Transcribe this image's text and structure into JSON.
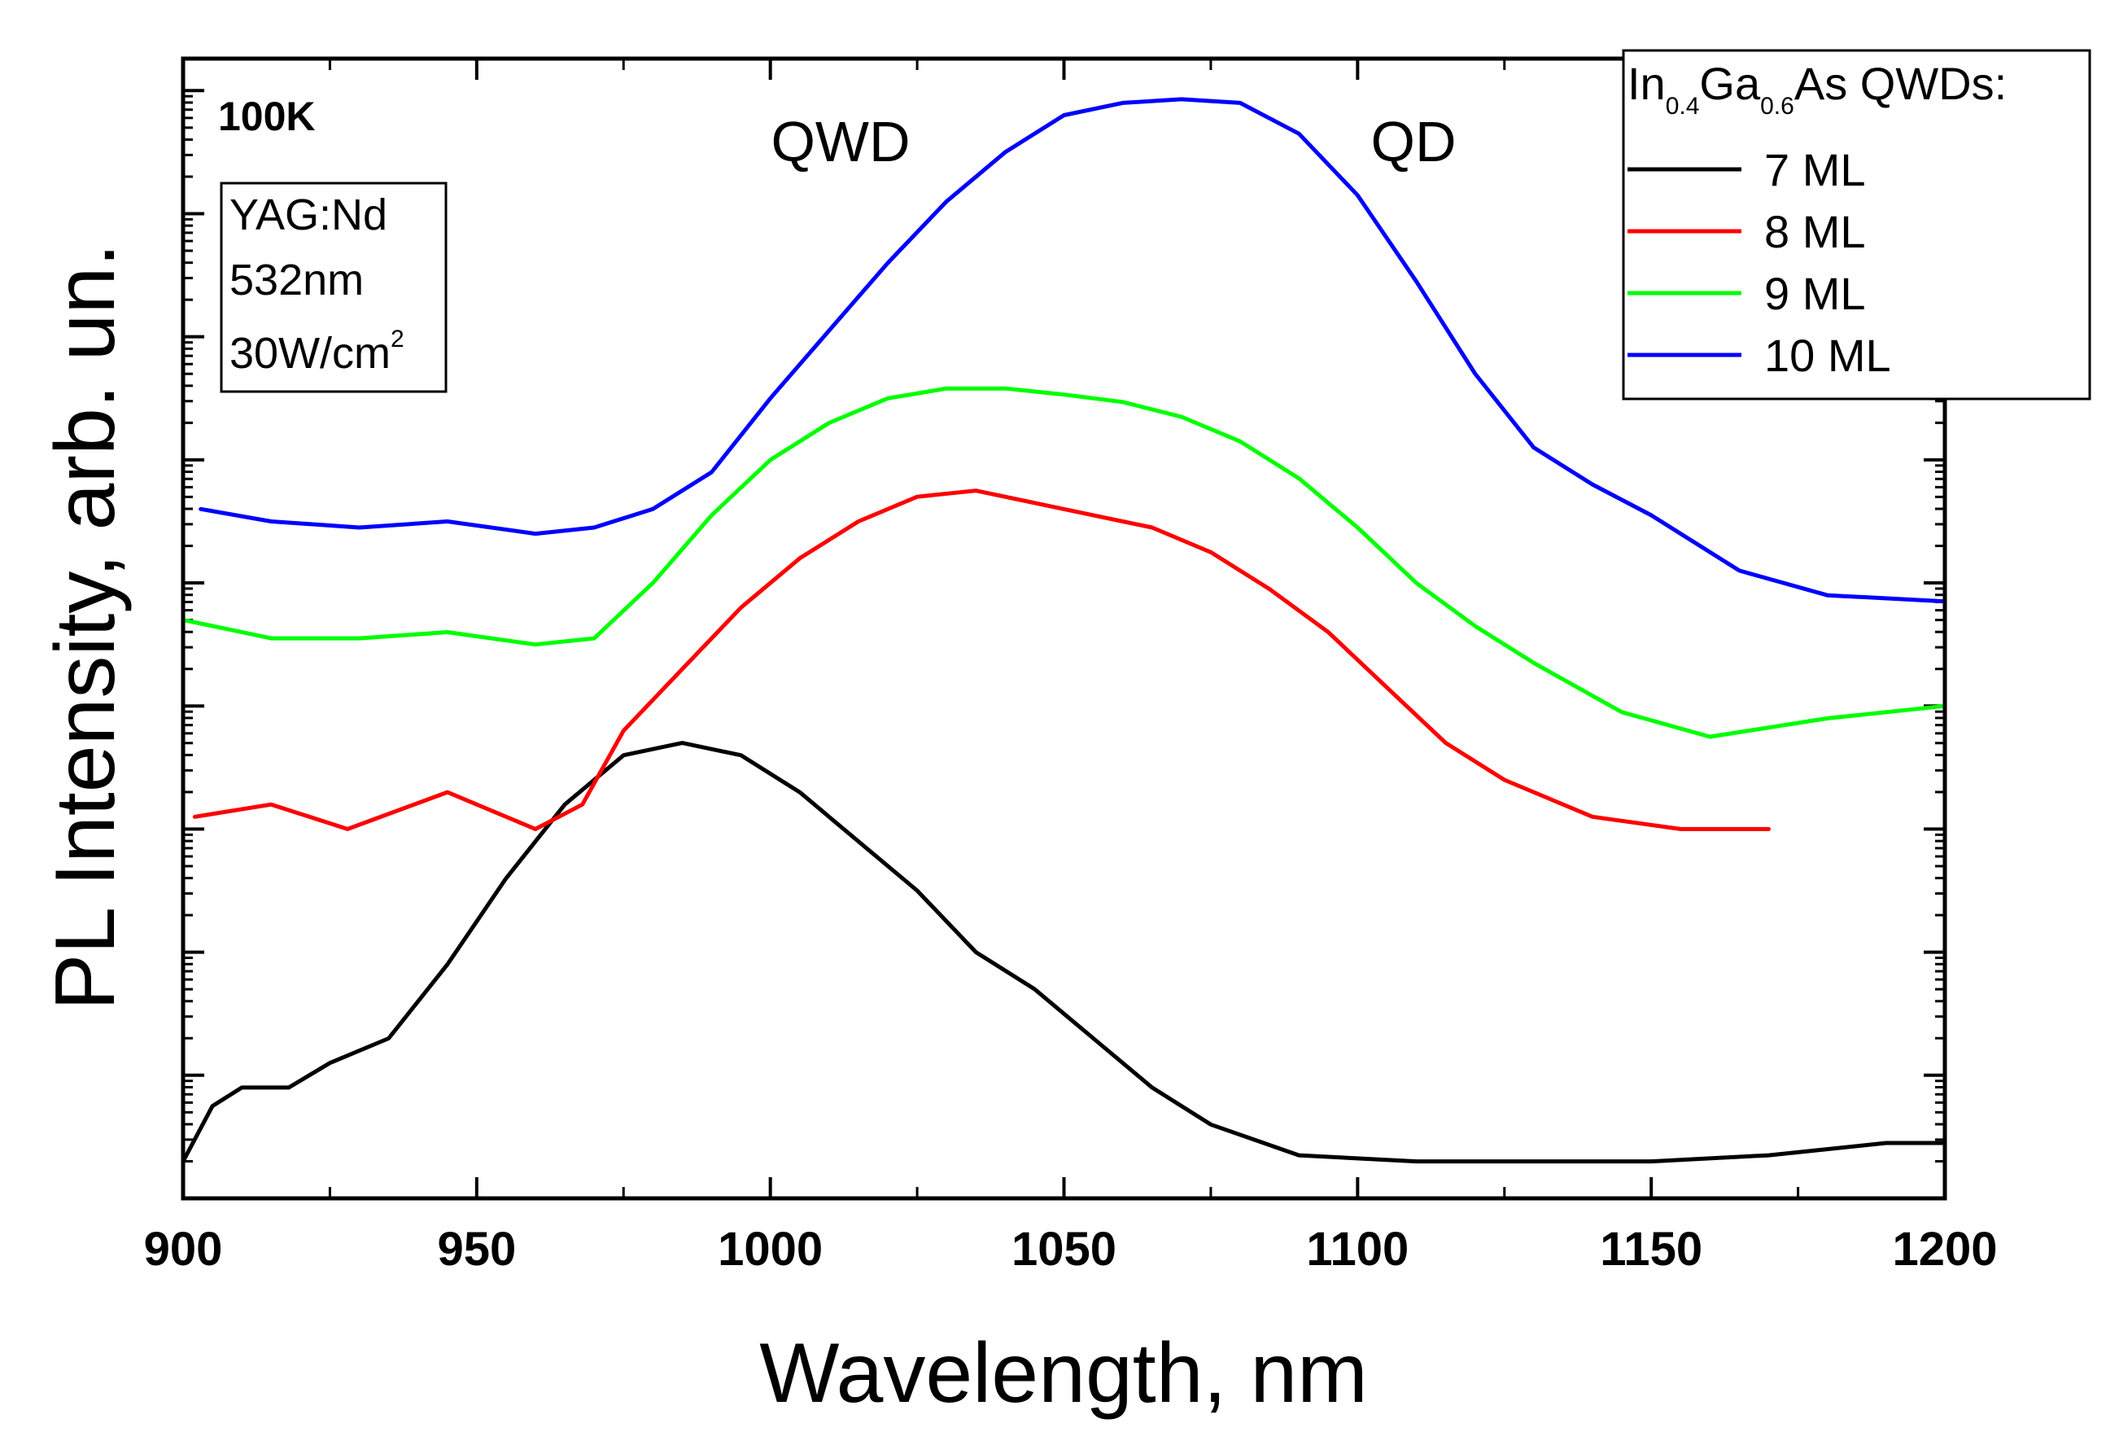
{
  "chart_data": {
    "type": "line",
    "title": "",
    "xlabel": "Wavelength, nm",
    "ylabel": "PL Intensity, arb. un.",
    "xlim": [
      900,
      1200
    ],
    "ylim": [
      0,
      8.7
    ],
    "y_scale": "log (decades, unlabeled)",
    "x_ticks": [
      900,
      950,
      1000,
      1050,
      1100,
      1150,
      1200
    ],
    "annotations": {
      "temperature": "100K",
      "qwd_label": "QWD",
      "qd_label": "QD",
      "excitation": [
        "YAG:Nd",
        "532nm",
        "30W/cm"
      ],
      "excitation_sup": "2"
    },
    "legend": {
      "title_parts": [
        "In",
        "0.4",
        "Ga",
        "0.6",
        "As QWDs:"
      ],
      "position": "top-right"
    },
    "series": [
      {
        "name": "7 ML",
        "color": "#000000",
        "x": [
          900,
          905,
          910,
          918,
          925,
          935,
          945,
          955,
          965,
          975,
          985,
          995,
          1005,
          1015,
          1025,
          1035,
          1045,
          1055,
          1065,
          1075,
          1090,
          1110,
          1130,
          1150,
          1170,
          1190,
          1200
        ],
        "y": [
          0.3,
          0.75,
          0.9,
          0.9,
          1.1,
          1.3,
          1.9,
          2.6,
          3.2,
          3.6,
          3.7,
          3.6,
          3.3,
          2.9,
          2.5,
          2.0,
          1.7,
          1.3,
          0.9,
          0.6,
          0.35,
          0.3,
          0.3,
          0.3,
          0.35,
          0.45,
          0.45
        ]
      },
      {
        "name": "8 ML",
        "color": "#ff0000",
        "x": [
          902,
          915,
          928,
          945,
          960,
          968,
          975,
          985,
          995,
          1005,
          1015,
          1025,
          1035,
          1045,
          1055,
          1065,
          1075,
          1085,
          1095,
          1105,
          1115,
          1125,
          1140,
          1155,
          1170
        ],
        "y": [
          3.1,
          3.2,
          3.0,
          3.3,
          3.0,
          3.2,
          3.8,
          4.3,
          4.8,
          5.2,
          5.5,
          5.7,
          5.75,
          5.65,
          5.55,
          5.45,
          5.25,
          4.95,
          4.6,
          4.15,
          3.7,
          3.4,
          3.1,
          3.0,
          3.0
        ]
      },
      {
        "name": "9 ML",
        "color": "#00ff00",
        "x": [
          900,
          915,
          930,
          945,
          960,
          970,
          980,
          990,
          1000,
          1010,
          1020,
          1030,
          1040,
          1050,
          1060,
          1070,
          1080,
          1090,
          1100,
          1110,
          1120,
          1130,
          1145,
          1160,
          1180,
          1200
        ],
        "y": [
          4.7,
          4.55,
          4.55,
          4.6,
          4.5,
          4.55,
          5.0,
          5.55,
          6.0,
          6.3,
          6.5,
          6.58,
          6.58,
          6.53,
          6.47,
          6.35,
          6.15,
          5.85,
          5.45,
          5.0,
          4.65,
          4.35,
          3.95,
          3.75,
          3.9,
          4.0
        ]
      },
      {
        "name": "10 ML",
        "color": "#0000ff",
        "x": [
          903,
          915,
          930,
          945,
          960,
          970,
          980,
          990,
          1000,
          1010,
          1020,
          1030,
          1040,
          1050,
          1060,
          1070,
          1080,
          1090,
          1100,
          1110,
          1120,
          1130,
          1140,
          1150,
          1165,
          1180,
          1200
        ],
        "y": [
          5.6,
          5.5,
          5.45,
          5.5,
          5.4,
          5.45,
          5.6,
          5.9,
          6.5,
          7.05,
          7.6,
          8.1,
          8.5,
          8.8,
          8.9,
          8.93,
          8.9,
          8.65,
          8.15,
          7.45,
          6.7,
          6.1,
          5.8,
          5.55,
          5.1,
          4.9,
          4.85
        ]
      }
    ]
  }
}
